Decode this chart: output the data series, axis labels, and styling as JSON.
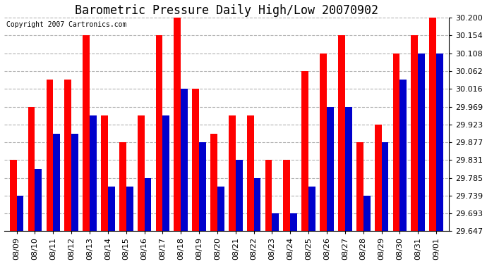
{
  "title": "Barometric Pressure Daily High/Low 20070902",
  "copyright": "Copyright 2007 Cartronics.com",
  "dates": [
    "08/09",
    "08/10",
    "08/11",
    "08/12",
    "08/13",
    "08/14",
    "08/15",
    "08/16",
    "08/17",
    "08/18",
    "08/19",
    "08/20",
    "08/21",
    "08/22",
    "08/23",
    "08/24",
    "08/25",
    "08/26",
    "08/27",
    "08/28",
    "08/29",
    "08/30",
    "08/31",
    "09/01"
  ],
  "highs": [
    29.831,
    29.969,
    30.039,
    30.039,
    30.154,
    29.947,
    29.877,
    29.947,
    30.154,
    30.2,
    30.016,
    29.9,
    29.947,
    29.947,
    29.831,
    29.831,
    30.062,
    30.108,
    30.154,
    29.877,
    29.923,
    30.108,
    30.154,
    30.2
  ],
  "lows": [
    29.739,
    29.808,
    29.9,
    29.9,
    29.946,
    29.762,
    29.762,
    29.785,
    29.946,
    30.016,
    29.877,
    29.762,
    29.831,
    29.785,
    29.693,
    29.693,
    29.762,
    29.969,
    29.969,
    29.739,
    29.877,
    30.039,
    30.108,
    30.108
  ],
  "ylim_min": 29.647,
  "ylim_max": 30.2,
  "yticks": [
    29.647,
    29.693,
    29.739,
    29.785,
    29.831,
    29.877,
    29.923,
    29.969,
    30.016,
    30.062,
    30.108,
    30.154,
    30.2
  ],
  "high_color": "#ff0000",
  "low_color": "#0000cc",
  "bg_color": "#ffffff",
  "plot_bg_color": "#ffffff",
  "grid_color": "#aaaaaa",
  "title_fontsize": 12,
  "tick_fontsize": 8,
  "copyright_fontsize": 7,
  "bar_width": 0.38
}
